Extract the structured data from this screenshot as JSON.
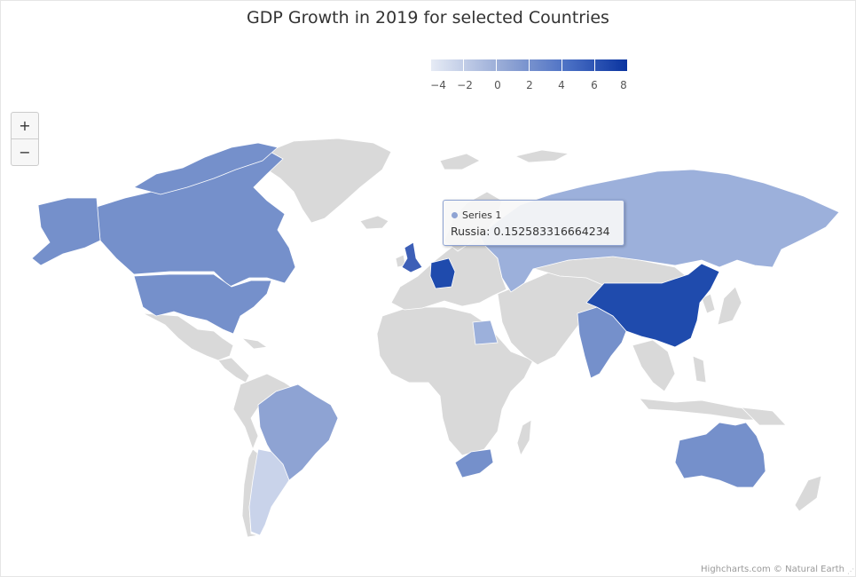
{
  "title": "GDP Growth in 2019 for selected Countries",
  "legend": {
    "labels": [
      "−4",
      "−2",
      "0",
      "2",
      "4",
      "6",
      "8"
    ],
    "min": -4,
    "max": 8
  },
  "zoom": {
    "in_label": "+",
    "out_label": "−"
  },
  "tooltip": {
    "series_name": "Series 1",
    "text": "Russia: 0.152583316664234"
  },
  "credits": "Highcharts.com © Natural Earth",
  "colors": {
    "no_data": "#d9d9d9",
    "border": "#ffffff",
    "low": "#c9d3ea",
    "mid_low": "#9cb0db",
    "mid": "#8ea3d3",
    "mid_high": "#7590cb",
    "high": "#3d5fb7",
    "highest": "#1f4bad"
  },
  "countries_highlighted": [
    {
      "name": "United States",
      "color_key": "mid_high"
    },
    {
      "name": "Canada",
      "color_key": "mid_high"
    },
    {
      "name": "Brazil",
      "color_key": "mid"
    },
    {
      "name": "Argentina",
      "color_key": "low"
    },
    {
      "name": "United Kingdom",
      "color_key": "high"
    },
    {
      "name": "Germany",
      "color_key": "highest"
    },
    {
      "name": "Russia",
      "color_key": "mid_low"
    },
    {
      "name": "Egypt",
      "color_key": "mid_low"
    },
    {
      "name": "India",
      "color_key": "mid_high"
    },
    {
      "name": "China",
      "color_key": "highest"
    },
    {
      "name": "South Africa",
      "color_key": "mid_high"
    },
    {
      "name": "Australia",
      "color_key": "mid_high"
    }
  ]
}
